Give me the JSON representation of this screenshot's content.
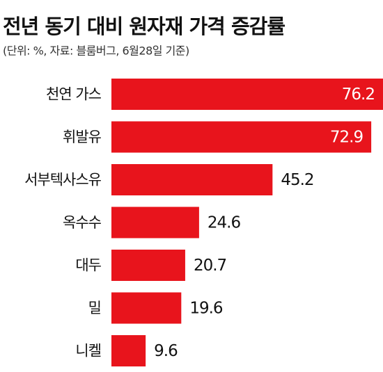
{
  "chart_data": {
    "type": "hbar",
    "title": "전년 동기 대비 원자재 가격 증감률",
    "subtitle": "(단위: %, 자료: 블룸버그, 6월28일 기준)",
    "categories": [
      "천연 가스",
      "휘발유",
      "서부텍사스유",
      "옥수수",
      "대두",
      "밀",
      "니켈"
    ],
    "values": [
      76.2,
      72.9,
      45.2,
      24.6,
      20.7,
      19.6,
      9.6
    ],
    "color": "#e8141c"
  }
}
